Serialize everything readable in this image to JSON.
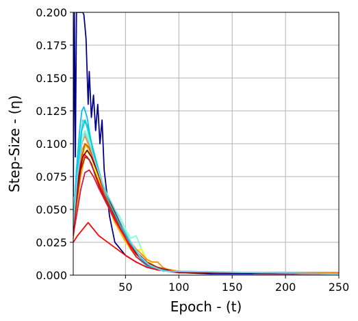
{
  "chart_data": {
    "type": "line",
    "xlabel": "Epoch - (t)",
    "ylabel": "Step-Size - (η)",
    "xlim": [
      1,
      250
    ],
    "ylim": [
      0,
      0.2
    ],
    "x_ticks": [
      50,
      100,
      150,
      200,
      250
    ],
    "x_tick_labels": [
      "50",
      "100",
      "150",
      "200",
      "250"
    ],
    "y_ticks": [
      0.0,
      0.025,
      0.05,
      0.075,
      0.1,
      0.125,
      0.15,
      0.175,
      0.2
    ],
    "y_tick_labels": [
      "0.000",
      "0.025",
      "0.050",
      "0.075",
      "0.100",
      "0.125",
      "0.150",
      "0.175",
      "0.200"
    ],
    "grid": true,
    "legend": false,
    "series": [
      {
        "color": "#00008b",
        "x": [
          1,
          2,
          3,
          4,
          6,
          8,
          10,
          11,
          13,
          15,
          16,
          18,
          20,
          22,
          24,
          26,
          28,
          30,
          35,
          40,
          50,
          60,
          70,
          80,
          100,
          130,
          250
        ],
        "y": [
          0.06,
          0.2,
          0.09,
          0.2,
          0.2,
          0.2,
          0.2,
          0.198,
          0.18,
          0.13,
          0.155,
          0.12,
          0.137,
          0.11,
          0.13,
          0.1,
          0.118,
          0.08,
          0.045,
          0.025,
          0.015,
          0.01,
          0.006,
          0.004,
          0.002,
          0.001,
          0.001
        ]
      },
      {
        "color": "#00bfff",
        "x": [
          1,
          4,
          7,
          9,
          11,
          14,
          18,
          22,
          26,
          30,
          35,
          40,
          45,
          50,
          55,
          60,
          70,
          80,
          100,
          250
        ],
        "y": [
          0.04,
          0.08,
          0.11,
          0.125,
          0.128,
          0.12,
          0.1,
          0.085,
          0.075,
          0.065,
          0.055,
          0.045,
          0.035,
          0.028,
          0.02,
          0.014,
          0.007,
          0.004,
          0.002,
          0.001
        ]
      },
      {
        "color": "#40e0d0",
        "x": [
          1,
          4,
          7,
          10,
          13,
          16,
          20,
          25,
          30,
          35,
          40,
          45,
          50,
          55,
          60,
          65,
          70,
          75,
          80,
          100,
          250
        ],
        "y": [
          0.035,
          0.07,
          0.1,
          0.118,
          0.115,
          0.105,
          0.095,
          0.08,
          0.065,
          0.055,
          0.048,
          0.04,
          0.03,
          0.024,
          0.018,
          0.02,
          0.01,
          0.006,
          0.004,
          0.002,
          0.001
        ]
      },
      {
        "color": "#7fffd4",
        "x": [
          1,
          5,
          9,
          12,
          15,
          20,
          25,
          30,
          35,
          40,
          45,
          50,
          55,
          60,
          65,
          70,
          80,
          100,
          250
        ],
        "y": [
          0.04,
          0.08,
          0.105,
          0.11,
          0.105,
          0.09,
          0.075,
          0.064,
          0.058,
          0.05,
          0.044,
          0.035,
          0.028,
          0.03,
          0.02,
          0.012,
          0.005,
          0.002,
          0.001
        ]
      },
      {
        "color": "#9acd32",
        "x": [
          1,
          5,
          9,
          12,
          16,
          20,
          25,
          30,
          40,
          50,
          60,
          70,
          80,
          100,
          250
        ],
        "y": [
          0.035,
          0.07,
          0.095,
          0.1,
          0.095,
          0.085,
          0.07,
          0.06,
          0.042,
          0.028,
          0.016,
          0.009,
          0.005,
          0.002,
          0.001
        ]
      },
      {
        "color": "#ffd700",
        "x": [
          1,
          5,
          9,
          13,
          17,
          21,
          26,
          30,
          40,
          50,
          60,
          70,
          80,
          100,
          120,
          250
        ],
        "y": [
          0.03,
          0.065,
          0.09,
          0.1,
          0.095,
          0.085,
          0.072,
          0.06,
          0.04,
          0.025,
          0.014,
          0.008,
          0.005,
          0.003,
          0.002,
          0.002
        ]
      },
      {
        "color": "#ffff00",
        "x": [
          1,
          5,
          9,
          13,
          18,
          22,
          28,
          35,
          45,
          55,
          60,
          65,
          70,
          80,
          100,
          250
        ],
        "y": [
          0.032,
          0.06,
          0.085,
          0.095,
          0.09,
          0.08,
          0.065,
          0.052,
          0.038,
          0.025,
          0.018,
          0.02,
          0.012,
          0.005,
          0.002,
          0.001
        ]
      },
      {
        "color": "#ffa500",
        "x": [
          1,
          4,
          8,
          12,
          16,
          20,
          25,
          30,
          40,
          50,
          60,
          70,
          80,
          100,
          150,
          250
        ],
        "y": [
          0.028,
          0.05,
          0.075,
          0.09,
          0.088,
          0.08,
          0.07,
          0.06,
          0.04,
          0.026,
          0.016,
          0.01,
          0.006,
          0.003,
          0.002,
          0.002
        ]
      },
      {
        "color": "#ff8c00",
        "x": [
          1,
          5,
          9,
          12,
          15,
          20,
          25,
          30,
          40,
          50,
          60,
          70,
          75,
          80,
          85,
          90,
          100,
          110,
          250
        ],
        "y": [
          0.03,
          0.07,
          0.1,
          0.106,
          0.1,
          0.09,
          0.075,
          0.062,
          0.045,
          0.03,
          0.02,
          0.012,
          0.01,
          0.01,
          0.006,
          0.004,
          0.003,
          0.002,
          0.002
        ]
      },
      {
        "color": "#ff4500",
        "x": [
          1,
          5,
          9,
          12,
          16,
          20,
          25,
          30,
          40,
          50,
          60,
          70,
          80,
          100,
          250
        ],
        "y": [
          0.03,
          0.065,
          0.09,
          0.1,
          0.097,
          0.088,
          0.075,
          0.062,
          0.044,
          0.028,
          0.016,
          0.009,
          0.005,
          0.002,
          0.001
        ]
      },
      {
        "color": "#ff0000",
        "x": [
          1,
          4,
          8,
          11,
          14,
          18,
          22,
          26,
          30,
          35,
          40,
          45,
          50,
          60,
          70,
          80,
          100,
          250
        ],
        "y": [
          0.03,
          0.06,
          0.085,
          0.092,
          0.09,
          0.085,
          0.075,
          0.066,
          0.058,
          0.05,
          0.042,
          0.035,
          0.028,
          0.016,
          0.009,
          0.005,
          0.002,
          0.001
        ]
      },
      {
        "color": "#dc143c",
        "x": [
          1,
          4,
          8,
          12,
          16,
          20,
          25,
          30,
          35,
          40,
          45,
          50,
          55,
          60,
          70,
          80,
          100,
          250
        ],
        "y": [
          0.03,
          0.045,
          0.065,
          0.078,
          0.08,
          0.075,
          0.066,
          0.058,
          0.05,
          0.043,
          0.036,
          0.028,
          0.02,
          0.014,
          0.008,
          0.004,
          0.002,
          0.001
        ]
      },
      {
        "color": "#b22222",
        "x": [
          1,
          4,
          8,
          12,
          16,
          20,
          25,
          30,
          35,
          40,
          45,
          50,
          55,
          60,
          70,
          80,
          100,
          250
        ],
        "y": [
          0.032,
          0.055,
          0.08,
          0.09,
          0.088,
          0.08,
          0.07,
          0.06,
          0.052,
          0.045,
          0.038,
          0.03,
          0.024,
          0.018,
          0.01,
          0.006,
          0.002,
          0.001
        ]
      },
      {
        "color": "#ff0000",
        "x": [
          1,
          5,
          10,
          15,
          20,
          25,
          30,
          40,
          50,
          60,
          70,
          80,
          100,
          250
        ],
        "y": [
          0.025,
          0.03,
          0.035,
          0.04,
          0.035,
          0.03,
          0.027,
          0.021,
          0.015,
          0.01,
          0.006,
          0.004,
          0.002,
          0.001
        ]
      },
      {
        "color": "#8b0000",
        "x": [
          1,
          3,
          6,
          10,
          14,
          18,
          22,
          26,
          30,
          35,
          40,
          45,
          50,
          55,
          60,
          70,
          80,
          100,
          250
        ],
        "y": [
          0.035,
          0.055,
          0.075,
          0.09,
          0.095,
          0.09,
          0.082,
          0.074,
          0.066,
          0.057,
          0.048,
          0.04,
          0.032,
          0.024,
          0.017,
          0.009,
          0.005,
          0.002,
          0.001
        ]
      },
      {
        "color": "#00ced1",
        "x": [
          1,
          5,
          9,
          12,
          15,
          19,
          23,
          28,
          35,
          45,
          55,
          65,
          75,
          90,
          250
        ],
        "y": [
          0.04,
          0.08,
          0.11,
          0.118,
          0.112,
          0.098,
          0.085,
          0.07,
          0.055,
          0.038,
          0.024,
          0.012,
          0.006,
          0.003,
          0.001
        ]
      },
      {
        "color": "#87ceeb",
        "x": [
          1,
          5,
          9,
          12,
          16,
          20,
          26,
          32,
          40,
          48,
          56,
          64,
          72,
          85,
          250
        ],
        "y": [
          0.038,
          0.075,
          0.1,
          0.108,
          0.1,
          0.09,
          0.075,
          0.063,
          0.05,
          0.036,
          0.024,
          0.014,
          0.008,
          0.003,
          0.001
        ]
      }
    ]
  }
}
